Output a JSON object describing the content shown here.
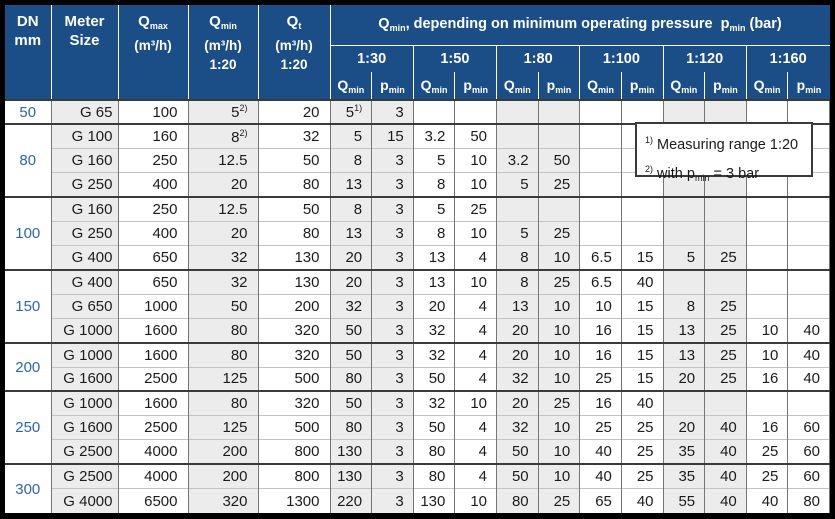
{
  "palette": {
    "header_bg": "#1b4e87",
    "header_text": "#ffffff",
    "dn_text": "#2c66ad",
    "stripe": "#ececec",
    "grid_line": "#757575",
    "row_line": "#c3c3c3",
    "group_line": "#3a3a3a",
    "frame": "#000000"
  },
  "header": {
    "dn_line1": "DN",
    "dn_line2": "mm",
    "meter_line1": "Meter",
    "meter_line2": "Size",
    "qmax": {
      "sym": "Q",
      "sub": "max",
      "unit": "(m³/h)",
      "ratio": ""
    },
    "qmin": {
      "sym": "Q",
      "sub": "min",
      "unit": "(m³/h)",
      "ratio": "1:20"
    },
    "qt": {
      "sym": "Q",
      "sub": "t",
      "unit": "(m³/h)",
      "ratio": "1:20"
    },
    "big": {
      "p1": "Q",
      "s1": "min",
      "p2": ", depending on minimum operating pressure  p",
      "s2": "min",
      "p3": " (bar)"
    },
    "ratios": [
      "1:30",
      "1:50",
      "1:80",
      "1:100",
      "1:120",
      "1:160"
    ],
    "sub_q": {
      "sym": "Q",
      "sub": "min"
    },
    "sub_p": {
      "sym": "p",
      "sub": "min"
    }
  },
  "note": {
    "sup1": "1)",
    "text1": " Measuring range 1:20",
    "sup2": "2)",
    "text2_pre": " with p",
    "text2_sub": "min",
    "text2_post": " = 3 bar"
  },
  "groups": [
    {
      "dn": "50",
      "rows": [
        {
          "meter": "G 65",
          "qmax": "100",
          "qmin": "5^2)",
          "qt": "20",
          "r": [
            "5^1)",
            "3",
            "",
            "",
            "",
            "",
            "",
            "",
            "",
            "",
            "",
            ""
          ]
        }
      ]
    },
    {
      "dn": "80",
      "rows": [
        {
          "meter": "G 100",
          "qmax": "160",
          "qmin": "8^2)",
          "qt": "32",
          "r": [
            "5",
            "15",
            "3.2",
            "50",
            "",
            "",
            "",
            "",
            "",
            "",
            "",
            ""
          ]
        },
        {
          "meter": "G 160",
          "qmax": "250",
          "qmin": "12.5",
          "qt": "50",
          "r": [
            "8",
            "3",
            "5",
            "10",
            "3.2",
            "50",
            "",
            "",
            "",
            "",
            "",
            ""
          ]
        },
        {
          "meter": "G 250",
          "qmax": "400",
          "qmin": "20",
          "qt": "80",
          "r": [
            "13",
            "3",
            "8",
            "10",
            "5",
            "25",
            "",
            "",
            "",
            "",
            "",
            ""
          ]
        }
      ]
    },
    {
      "dn": "100",
      "rows": [
        {
          "meter": "G 160",
          "qmax": "250",
          "qmin": "12.5",
          "qt": "50",
          "r": [
            "8",
            "3",
            "5",
            "25",
            "",
            "",
            "",
            "",
            "",
            "",
            "",
            ""
          ]
        },
        {
          "meter": "G 250",
          "qmax": "400",
          "qmin": "20",
          "qt": "80",
          "r": [
            "13",
            "3",
            "8",
            "10",
            "5",
            "25",
            "",
            "",
            "",
            "",
            "",
            ""
          ]
        },
        {
          "meter": "G 400",
          "qmax": "650",
          "qmin": "32",
          "qt": "130",
          "r": [
            "20",
            "3",
            "13",
            "4",
            "8",
            "10",
            "6.5",
            "15",
            "5",
            "25",
            "",
            ""
          ]
        }
      ]
    },
    {
      "dn": "150",
      "rows": [
        {
          "meter": "G 400",
          "qmax": "650",
          "qmin": "32",
          "qt": "130",
          "r": [
            "20",
            "3",
            "13",
            "10",
            "8",
            "25",
            "6.5",
            "40",
            "",
            "",
            "",
            ""
          ]
        },
        {
          "meter": "G 650",
          "qmax": "1000",
          "qmin": "50",
          "qt": "200",
          "r": [
            "32",
            "3",
            "20",
            "4",
            "13",
            "10",
            "10",
            "15",
            "8",
            "25",
            "",
            ""
          ]
        },
        {
          "meter": "G 1000",
          "qmax": "1600",
          "qmin": "80",
          "qt": "320",
          "r": [
            "50",
            "3",
            "32",
            "4",
            "20",
            "10",
            "16",
            "15",
            "13",
            "25",
            "10",
            "40"
          ]
        }
      ]
    },
    {
      "dn": "200",
      "rows": [
        {
          "meter": "G 1000",
          "qmax": "1600",
          "qmin": "80",
          "qt": "320",
          "r": [
            "50",
            "3",
            "32",
            "4",
            "20",
            "10",
            "16",
            "15",
            "13",
            "25",
            "10",
            "40"
          ]
        },
        {
          "meter": "G 1600",
          "qmax": "2500",
          "qmin": "125",
          "qt": "500",
          "r": [
            "80",
            "3",
            "50",
            "4",
            "32",
            "10",
            "25",
            "15",
            "20",
            "25",
            "16",
            "40"
          ]
        }
      ]
    },
    {
      "dn": "250",
      "rows": [
        {
          "meter": "G 1000",
          "qmax": "1600",
          "qmin": "80",
          "qt": "320",
          "r": [
            "50",
            "3",
            "32",
            "10",
            "20",
            "25",
            "16",
            "40",
            "",
            "",
            "",
            ""
          ]
        },
        {
          "meter": "G 1600",
          "qmax": "2500",
          "qmin": "125",
          "qt": "500",
          "r": [
            "80",
            "3",
            "50",
            "4",
            "32",
            "10",
            "25",
            "25",
            "20",
            "40",
            "16",
            "60"
          ]
        },
        {
          "meter": "G 2500",
          "qmax": "4000",
          "qmin": "200",
          "qt": "800",
          "r": [
            "130",
            "3",
            "80",
            "4",
            "50",
            "10",
            "40",
            "25",
            "35",
            "40",
            "25",
            "60"
          ]
        }
      ]
    },
    {
      "dn": "300",
      "rows": [
        {
          "meter": "G 2500",
          "qmax": "4000",
          "qmin": "200",
          "qt": "800",
          "r": [
            "130",
            "3",
            "80",
            "4",
            "50",
            "10",
            "40",
            "25",
            "35",
            "40",
            "25",
            "60"
          ]
        },
        {
          "meter": "G 4000",
          "qmax": "6500",
          "qmin": "320",
          "qt": "1300",
          "r": [
            "220",
            "3",
            "130",
            "10",
            "80",
            "25",
            "65",
            "40",
            "55",
            "40",
            "40",
            "80"
          ]
        }
      ]
    }
  ]
}
